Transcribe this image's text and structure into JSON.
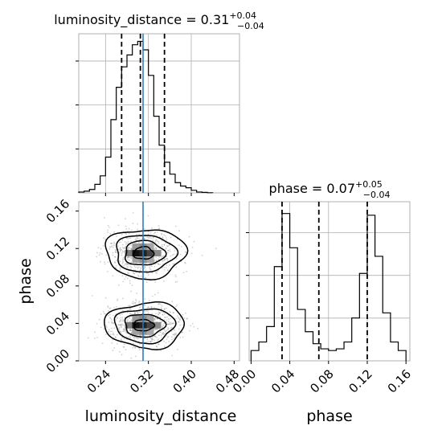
{
  "chart_data": [
    {
      "type": "histogram",
      "panel": "luminosity_distance marginal",
      "title_main": "luminosity_distance = 0.31",
      "title_plus": "+0.04",
      "title_minus": "−0.04",
      "bin_edges": [
        0.19,
        0.2,
        0.21,
        0.22,
        0.23,
        0.24,
        0.25,
        0.26,
        0.27,
        0.28,
        0.29,
        0.3,
        0.31,
        0.32,
        0.33,
        0.34,
        0.35,
        0.36,
        0.37,
        0.38,
        0.39,
        0.4,
        0.41,
        0.42,
        0.43,
        0.44
      ],
      "counts": [
        0.005,
        0.01,
        0.02,
        0.05,
        0.1,
        0.21,
        0.43,
        0.62,
        0.74,
        0.81,
        0.87,
        0.89,
        0.84,
        0.69,
        0.45,
        0.28,
        0.18,
        0.11,
        0.06,
        0.04,
        0.03,
        0.015,
        0.005,
        0.003,
        0.001
      ],
      "quantiles": [
        0.27,
        0.305,
        0.35
      ],
      "truth": 0.31,
      "xlim": [
        0.19,
        0.49
      ]
    },
    {
      "type": "histogram",
      "panel": "phase marginal",
      "title_main": "phase = 0.07",
      "title_plus": "+0.05",
      "title_minus": "−0.04",
      "bin_edges": [
        0.0,
        0.008,
        0.016,
        0.024,
        0.032,
        0.04,
        0.048,
        0.056,
        0.064,
        0.072,
        0.08,
        0.088,
        0.096,
        0.104,
        0.112,
        0.12,
        0.128,
        0.136,
        0.144,
        0.152,
        0.16
      ],
      "counts": [
        0.06,
        0.11,
        0.2,
        0.55,
        0.86,
        0.66,
        0.3,
        0.17,
        0.1,
        0.07,
        0.06,
        0.07,
        0.11,
        0.25,
        0.51,
        0.85,
        0.61,
        0.28,
        0.11,
        0.06
      ],
      "quantiles": [
        0.032,
        0.07,
        0.12
      ],
      "xlim": [
        -0.002,
        0.164
      ],
      "xticks": [
        "0.00",
        "0.04",
        "0.08",
        "0.12",
        "0.16"
      ],
      "xlabel": "phase"
    },
    {
      "type": "scatter",
      "panel": "2D luminosity_distance vs phase",
      "xlabel": "luminosity_distance",
      "ylabel": "phase",
      "xlim": [
        0.19,
        0.49
      ],
      "ylim": [
        0.0,
        0.17
      ],
      "xticks": [
        "0.24",
        "0.32",
        "0.40",
        "0.48"
      ],
      "yticks": [
        "0.00",
        "0.04",
        "0.08",
        "0.12",
        "0.16"
      ],
      "modes": [
        {
          "center": [
            0.31,
            0.115
          ],
          "spread": [
            0.035,
            0.013
          ]
        },
        {
          "center": [
            0.31,
            0.038
          ],
          "spread": [
            0.035,
            0.012
          ]
        }
      ],
      "truth_x": 0.31
    }
  ]
}
